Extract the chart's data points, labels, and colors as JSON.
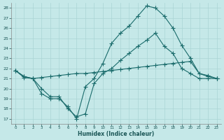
{
  "xlabel": "Humidex (Indice chaleur)",
  "xlim": [
    -0.5,
    23.5
  ],
  "ylim": [
    16.5,
    28.5
  ],
  "yticks": [
    17,
    18,
    19,
    20,
    21,
    22,
    23,
    24,
    25,
    26,
    27,
    28
  ],
  "xticks": [
    0,
    1,
    2,
    3,
    4,
    5,
    6,
    7,
    8,
    9,
    10,
    11,
    12,
    13,
    14,
    15,
    16,
    17,
    18,
    19,
    20,
    21,
    22,
    23
  ],
  "bg_color": "#c5e8e8",
  "grid_color": "#aad4d4",
  "line_color": "#1a6b6b",
  "line_high_x": [
    0,
    1,
    2,
    3,
    4,
    5,
    6,
    7,
    8,
    9,
    10,
    11,
    12,
    13,
    14,
    15,
    16,
    17,
    18,
    19,
    20,
    21,
    22,
    23
  ],
  "line_high_y": [
    21.8,
    21.2,
    21.0,
    19.5,
    19.0,
    19.0,
    18.2,
    17.0,
    20.2,
    21.0,
    22.5,
    24.5,
    25.5,
    26.2,
    27.2,
    28.2,
    28.0,
    27.2,
    26.0,
    24.3,
    23.0,
    21.5,
    21.2,
    21.0
  ],
  "line_low_x": [
    0,
    1,
    2,
    3,
    4,
    5,
    6,
    7,
    8,
    9,
    10,
    11,
    12,
    13,
    14,
    15,
    16,
    17,
    18,
    19,
    20,
    21,
    22,
    23
  ],
  "line_low_y": [
    21.8,
    21.2,
    21.0,
    20.0,
    19.2,
    19.2,
    18.0,
    17.2,
    17.5,
    20.5,
    21.5,
    22.0,
    22.8,
    23.5,
    24.2,
    24.8,
    25.5,
    24.2,
    23.5,
    22.0,
    21.5,
    21.0,
    21.0,
    21.0
  ],
  "line_flat_x": [
    0,
    1,
    2,
    3,
    4,
    5,
    6,
    7,
    8,
    9,
    10,
    11,
    12,
    13,
    14,
    15,
    16,
    17,
    18,
    19,
    20,
    21,
    22,
    23
  ],
  "line_flat_y": [
    21.8,
    21.1,
    21.0,
    21.1,
    21.2,
    21.3,
    21.4,
    21.5,
    21.5,
    21.6,
    21.7,
    21.8,
    21.9,
    22.0,
    22.1,
    22.2,
    22.3,
    22.4,
    22.5,
    22.6,
    22.7,
    21.5,
    21.3,
    21.0
  ]
}
